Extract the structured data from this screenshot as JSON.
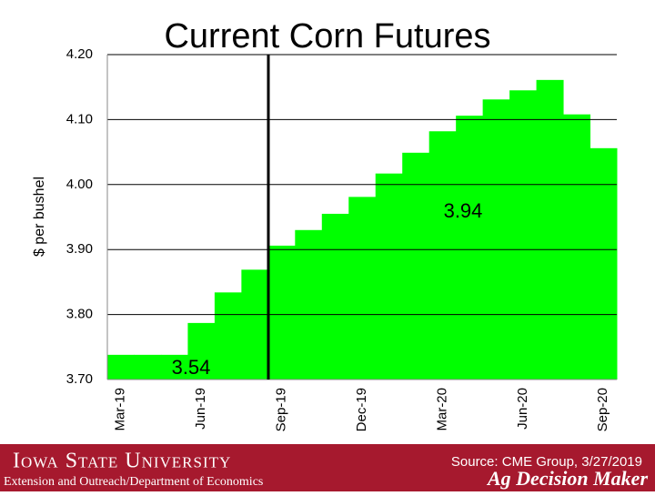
{
  "chart_data": {
    "type": "bar",
    "title": "Current Corn Futures",
    "y_label": "$ per bushel",
    "categories": [
      "Mar-19",
      null,
      null,
      "Jun-19",
      null,
      null,
      "Sep-19",
      null,
      null,
      "Dec-19",
      null,
      null,
      "Mar-20",
      null,
      null,
      "Jun-20",
      null,
      null,
      "Sep-20"
    ],
    "values": [
      3.738,
      3.738,
      3.738,
      3.787,
      3.834,
      3.869,
      3.906,
      3.93,
      3.955,
      3.981,
      4.017,
      4.049,
      4.082,
      4.106,
      4.131,
      4.145,
      4.161,
      4.108,
      4.056
    ],
    "color": "#00ff00",
    "ylim": [
      3.7,
      4.2
    ],
    "yticks": [
      {
        "value": 3.7,
        "label": "3.70"
      },
      {
        "value": 3.8,
        "label": "3.80"
      },
      {
        "value": 3.9,
        "label": "3.90"
      },
      {
        "value": 4.0,
        "label": "4.00"
      },
      {
        "value": 4.1,
        "label": "4.10"
      },
      {
        "value": 4.2,
        "label": "4.20"
      }
    ],
    "grid": true,
    "annotations": [
      "3.54",
      "3.94"
    ]
  },
  "footer": {
    "university": "Iowa State University",
    "department": "Extension and Outreach/Department of Economics",
    "source": "Source: CME Group, 3/27/2019",
    "brand": "Ag Decision Maker"
  }
}
